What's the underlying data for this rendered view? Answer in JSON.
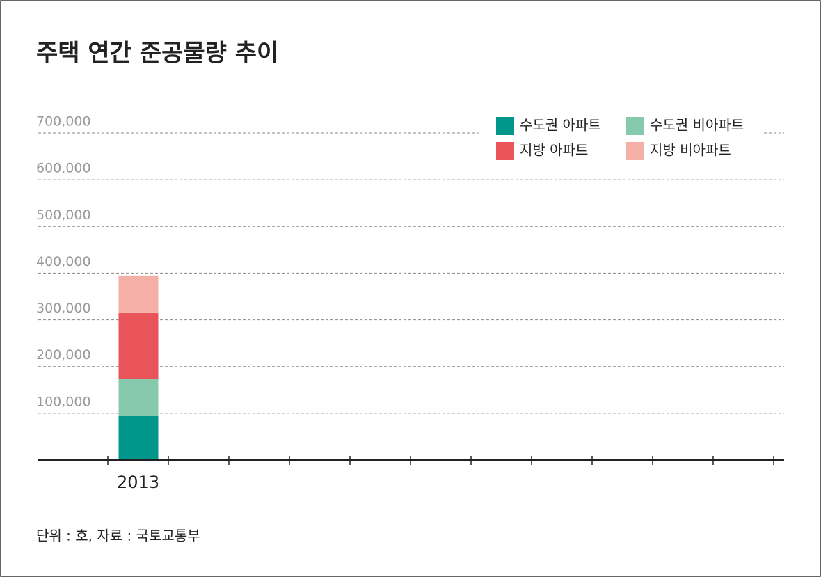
{
  "chart_data": {
    "type": "stacked-bar",
    "title": "주택 연간 준공물량 추이",
    "categories": [
      "2013",
      null,
      null,
      null,
      null,
      null,
      null,
      null,
      null,
      null,
      null
    ],
    "series": [
      {
        "name": "수도권 아파트",
        "color": "#00968a",
        "values": [
          94000,
          null,
          null,
          null,
          null,
          null,
          null,
          null,
          null,
          null,
          null
        ]
      },
      {
        "name": "수도권 비아파트",
        "color": "#87c9ac",
        "values": [
          80000,
          null,
          null,
          null,
          null,
          null,
          null,
          null,
          null,
          null,
          null
        ]
      },
      {
        "name": "지방 아파트",
        "color": "#e9545a",
        "values": [
          142000,
          null,
          null,
          null,
          null,
          null,
          null,
          null,
          null,
          null,
          null
        ]
      },
      {
        "name": "지방 비아파트",
        "color": "#f4b0a6",
        "values": [
          79000,
          null,
          null,
          null,
          null,
          null,
          null,
          null,
          null,
          null,
          null
        ]
      }
    ],
    "ylim": [
      0,
      700000
    ],
    "yticks": [
      {
        "value": 100000,
        "label": "100,000"
      },
      {
        "value": 200000,
        "label": "200,000"
      },
      {
        "value": 300000,
        "label": "300,000"
      },
      {
        "value": 400000,
        "label": "400,000"
      },
      {
        "value": 500000,
        "label": "500,000"
      },
      {
        "value": 600000,
        "label": "600,000"
      },
      {
        "value": 700000,
        "label": "700,000"
      }
    ],
    "grid": true,
    "legend": "top-right",
    "note": "단위 : 호, 자료 : 국토교통부"
  }
}
